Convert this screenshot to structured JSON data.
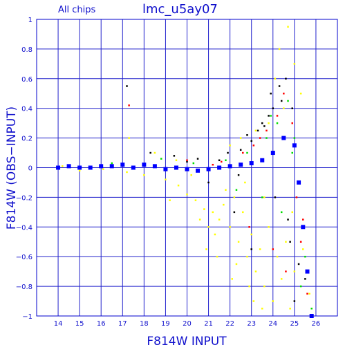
{
  "chart_data": {
    "type": "scatter",
    "title": "lmc_u5ay07",
    "subtitle": "All chips",
    "xlabel": "F814W INPUT",
    "ylabel": "F814W (OBS−INPUT)",
    "xlim": [
      13,
      27
    ],
    "ylim": [
      -1,
      1
    ],
    "grid": true,
    "x_ticks": [
      14,
      15,
      16,
      17,
      18,
      19,
      20,
      21,
      22,
      23,
      24,
      25,
      26
    ],
    "y_ticks": [
      -1,
      -0.8,
      -0.6,
      -0.4,
      -0.2,
      0,
      0.2,
      0.4,
      0.6,
      0.8,
      1
    ],
    "x_tick_labels": [
      "14",
      "15",
      "16",
      "17",
      "18",
      "19",
      "20",
      "21",
      "22",
      "23",
      "24",
      "25",
      "26"
    ],
    "y_tick_labels": [
      "−1",
      "−0.8",
      "−0.6",
      "−0.4",
      "−0.2",
      "0",
      "0.2",
      "0.4",
      "0.6",
      "0.8",
      "1"
    ],
    "colors": {
      "frame": "#0000cc",
      "grid": "#2020cc",
      "text": "#1010cc"
    },
    "series": [
      {
        "color": "#ffff00",
        "points": [
          [
            14.2,
            0.01
          ],
          [
            15.0,
            -0.02
          ],
          [
            16.1,
            -0.01
          ],
          [
            17.2,
            -0.03
          ],
          [
            18.0,
            -0.05
          ],
          [
            19.0,
            -0.08
          ],
          [
            19.6,
            -0.12
          ],
          [
            20.0,
            -0.18
          ],
          [
            20.4,
            -0.22
          ],
          [
            20.8,
            -0.28
          ],
          [
            21.2,
            -0.3
          ],
          [
            21.5,
            -0.35
          ],
          [
            21.7,
            -0.25
          ],
          [
            22.0,
            -0.4
          ],
          [
            22.2,
            -0.2
          ],
          [
            22.4,
            -0.5
          ],
          [
            22.6,
            -0.3
          ],
          [
            22.8,
            -0.6
          ],
          [
            23.0,
            -0.45
          ],
          [
            23.2,
            -0.7
          ],
          [
            23.4,
            -0.55
          ],
          [
            23.6,
            -0.8
          ],
          [
            23.8,
            -0.4
          ],
          [
            24.0,
            -0.9
          ],
          [
            24.2,
            -0.6
          ],
          [
            24.4,
            -0.75
          ],
          [
            24.6,
            -0.5
          ],
          [
            24.8,
            -0.95
          ],
          [
            25.0,
            -0.7
          ],
          [
            21.0,
            -0.4
          ],
          [
            21.3,
            -0.45
          ],
          [
            20.6,
            -0.35
          ],
          [
            22.3,
            -0.65
          ],
          [
            22.9,
            -0.8
          ],
          [
            23.5,
            -0.95
          ],
          [
            24.1,
            0.6
          ],
          [
            24.3,
            0.8
          ],
          [
            24.7,
            0.95
          ],
          [
            25.0,
            0.7
          ],
          [
            25.3,
            0.5
          ],
          [
            24.5,
            0.4
          ],
          [
            23.8,
            0.3
          ],
          [
            23.2,
            0.25
          ],
          [
            22.5,
            0.2
          ],
          [
            22.0,
            0.15
          ],
          [
            17.3,
            0.2
          ],
          [
            18.5,
            0.1
          ],
          [
            19.5,
            0.05
          ],
          [
            20.2,
            -0.05
          ],
          [
            21.8,
            -0.15
          ],
          [
            22.7,
            -0.1
          ],
          [
            23.6,
            -0.2
          ],
          [
            24.9,
            -0.3
          ],
          [
            25.4,
            -0.55
          ],
          [
            25.7,
            -0.85
          ],
          [
            19.2,
            -0.22
          ],
          [
            20.9,
            -0.55
          ],
          [
            21.4,
            -0.6
          ],
          [
            22.1,
            -0.75
          ],
          [
            23.1,
            -0.9
          ]
        ]
      },
      {
        "color": "#000000",
        "points": [
          [
            17.2,
            0.55
          ],
          [
            18.3,
            0.1
          ],
          [
            19.4,
            0.08
          ],
          [
            20.5,
            0.06
          ],
          [
            21.5,
            0.05
          ],
          [
            22.5,
            0.12
          ],
          [
            23.0,
            0.18
          ],
          [
            23.5,
            0.3
          ],
          [
            24.0,
            0.4
          ],
          [
            24.3,
            0.55
          ],
          [
            24.6,
            0.6
          ],
          [
            22.8,
            0.22
          ],
          [
            23.3,
            0.25
          ],
          [
            23.8,
            0.35
          ],
          [
            24.1,
            -0.2
          ],
          [
            24.8,
            -0.5
          ],
          [
            25.2,
            -0.65
          ],
          [
            23.0,
            -0.55
          ],
          [
            22.2,
            -0.3
          ],
          [
            21.0,
            -0.1
          ],
          [
            24.4,
            0.45
          ],
          [
            23.6,
            0.28
          ],
          [
            24.9,
            0.4
          ],
          [
            25.5,
            -0.75
          ],
          [
            21.9,
            0.1
          ],
          [
            20.0,
            0.04
          ],
          [
            22.4,
            -0.05
          ],
          [
            24.7,
            -0.35
          ],
          [
            23.9,
            0.5
          ],
          [
            25.0,
            -0.9
          ]
        ]
      },
      {
        "color": "#ff0000",
        "points": [
          [
            17.3,
            0.42
          ],
          [
            20.0,
            0.05
          ],
          [
            21.6,
            0.04
          ],
          [
            22.6,
            0.1
          ],
          [
            23.4,
            0.2
          ],
          [
            24.2,
            0.35
          ],
          [
            24.5,
            0.5
          ],
          [
            24.9,
            0.3
          ],
          [
            25.1,
            -0.2
          ],
          [
            25.3,
            -0.5
          ],
          [
            25.6,
            -0.85
          ],
          [
            22.9,
            -0.4
          ],
          [
            24.0,
            -0.55
          ],
          [
            23.1,
            0.15
          ],
          [
            24.6,
            -0.7
          ],
          [
            21.2,
            0.02
          ],
          [
            25.4,
            -0.35
          ],
          [
            23.7,
            0.25
          ]
        ]
      },
      {
        "color": "#00dd00",
        "points": [
          [
            16.5,
            0.03
          ],
          [
            18.8,
            0.06
          ],
          [
            20.3,
            0.03
          ],
          [
            21.8,
            0.05
          ],
          [
            22.8,
            0.1
          ],
          [
            23.7,
            0.2
          ],
          [
            24.2,
            0.3
          ],
          [
            24.7,
            0.45
          ],
          [
            25.0,
            0.2
          ],
          [
            25.2,
            -0.1
          ],
          [
            25.5,
            -0.6
          ],
          [
            25.8,
            -0.95
          ],
          [
            24.4,
            -0.3
          ],
          [
            23.5,
            -0.2
          ],
          [
            22.3,
            -0.15
          ],
          [
            24.9,
            0.1
          ],
          [
            25.3,
            -0.8
          ],
          [
            23.9,
            0.35
          ]
        ]
      },
      {
        "color": "#0000ff",
        "density": true,
        "points": [
          [
            14.0,
            0.0
          ],
          [
            14.5,
            0.01
          ],
          [
            15.0,
            0.0
          ],
          [
            15.5,
            0.0
          ],
          [
            16.0,
            0.01
          ],
          [
            16.5,
            0.01
          ],
          [
            17.0,
            0.02
          ],
          [
            17.5,
            0.0
          ],
          [
            18.0,
            0.02
          ],
          [
            18.5,
            0.01
          ],
          [
            19.0,
            -0.01
          ],
          [
            19.5,
            0.0
          ],
          [
            20.0,
            -0.01
          ],
          [
            20.5,
            -0.02
          ],
          [
            21.0,
            -0.01
          ],
          [
            21.5,
            0.0
          ],
          [
            22.0,
            0.01
          ],
          [
            22.5,
            0.02
          ],
          [
            23.0,
            0.03
          ],
          [
            23.5,
            0.05
          ],
          [
            24.0,
            0.1
          ],
          [
            24.5,
            0.2
          ],
          [
            25.0,
            0.15
          ],
          [
            25.2,
            -0.1
          ],
          [
            25.4,
            -0.4
          ],
          [
            25.6,
            -0.7
          ],
          [
            25.8,
            -1.0
          ]
        ]
      }
    ]
  }
}
